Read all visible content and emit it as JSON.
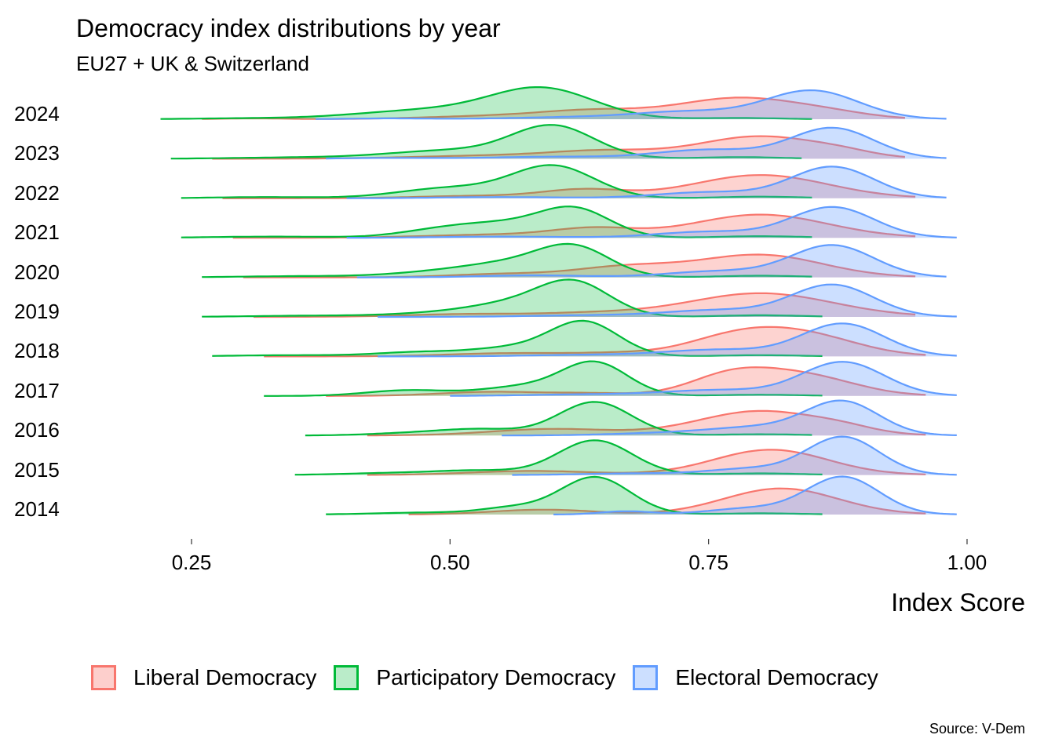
{
  "chart_data": {
    "type": "ridgeline",
    "title": "Democracy index distributions by year",
    "subtitle": "EU27 + UK & Switzerland",
    "xlabel": "Index Score",
    "ylabel": "",
    "xlim": [
      0.13,
      1.05
    ],
    "x_ticks": [
      "0.25",
      "0.50",
      "0.75",
      "1.00"
    ],
    "x_tick_values": [
      0.25,
      0.5,
      0.75,
      1.0
    ],
    "categories": [
      "2024",
      "2023",
      "2022",
      "2021",
      "2020",
      "2019",
      "2018",
      "2017",
      "2016",
      "2015",
      "2014"
    ],
    "legend_position": "bottom",
    "caption": "Source: V-Dem",
    "series": [
      {
        "name": "Liberal Democracy",
        "color": "#F8766D",
        "fill": "#F8766D",
        "years": {
          "2024": {
            "range": [
              0.26,
              0.94
            ],
            "components": [
              [
                0.31,
                0.03,
                0.02
              ],
              [
                0.55,
                0.07,
                0.08
              ],
              [
                0.64,
                0.05,
                0.18
              ],
              [
                0.78,
                0.06,
                0.52
              ],
              [
                0.87,
                0.04,
                0.1
              ]
            ]
          },
          "2023": {
            "range": [
              0.27,
              0.94
            ],
            "components": [
              [
                0.55,
                0.08,
                0.08
              ],
              [
                0.65,
                0.05,
                0.16
              ],
              [
                0.8,
                0.06,
                0.55
              ],
              [
                0.88,
                0.03,
                0.08
              ]
            ]
          },
          "2022": {
            "range": [
              0.28,
              0.95
            ],
            "components": [
              [
                0.53,
                0.06,
                0.06
              ],
              [
                0.63,
                0.04,
                0.2
              ],
              [
                0.8,
                0.065,
                0.57
              ]
            ]
          },
          "2021": {
            "range": [
              0.29,
              0.95
            ],
            "components": [
              [
                0.55,
                0.07,
                0.08
              ],
              [
                0.64,
                0.04,
                0.2
              ],
              [
                0.8,
                0.065,
                0.57
              ]
            ]
          },
          "2020": {
            "range": [
              0.3,
              0.95
            ],
            "components": [
              [
                0.55,
                0.05,
                0.08
              ],
              [
                0.67,
                0.05,
                0.25
              ],
              [
                0.8,
                0.06,
                0.55
              ]
            ]
          },
          "2019": {
            "range": [
              0.31,
              0.95
            ],
            "components": [
              [
                0.52,
                0.06,
                0.07
              ],
              [
                0.64,
                0.05,
                0.08
              ],
              [
                0.8,
                0.07,
                0.58
              ]
            ]
          },
          "2018": {
            "range": [
              0.32,
              0.96
            ],
            "components": [
              [
                0.56,
                0.06,
                0.08
              ],
              [
                0.66,
                0.04,
                0.06
              ],
              [
                0.78,
                0.05,
                0.5
              ],
              [
                0.85,
                0.05,
                0.42
              ]
            ]
          },
          "2017": {
            "range": [
              0.38,
              0.96
            ],
            "components": [
              [
                0.54,
                0.05,
                0.1
              ],
              [
                0.64,
                0.04,
                0.06
              ],
              [
                0.77,
                0.04,
                0.45
              ],
              [
                0.84,
                0.05,
                0.5
              ]
            ]
          },
          "2016": {
            "range": [
              0.42,
              0.96
            ],
            "components": [
              [
                0.6,
                0.06,
                0.16
              ],
              [
                0.8,
                0.06,
                0.6
              ],
              [
                0.88,
                0.03,
                0.1
              ]
            ]
          },
          "2015": {
            "range": [
              0.42,
              0.96
            ],
            "components": [
              [
                0.58,
                0.06,
                0.1
              ],
              [
                0.81,
                0.055,
                0.62
              ]
            ]
          },
          "2014": {
            "range": [
              0.46,
              0.96
            ],
            "components": [
              [
                0.59,
                0.05,
                0.12
              ],
              [
                0.82,
                0.055,
                0.64
              ]
            ]
          }
        }
      },
      {
        "name": "Participatory Democracy",
        "color": "#00BA38",
        "fill": "#00BA38",
        "years": {
          "2024": {
            "range": [
              0.22,
              0.85
            ],
            "components": [
              [
                0.3,
                0.05,
                0.02
              ],
              [
                0.48,
                0.07,
                0.22
              ],
              [
                0.59,
                0.05,
                0.72
              ],
              [
                0.78,
                0.04,
                0.03
              ]
            ]
          },
          "2023": {
            "range": [
              0.23,
              0.84
            ],
            "components": [
              [
                0.35,
                0.06,
                0.03
              ],
              [
                0.5,
                0.06,
                0.2
              ],
              [
                0.6,
                0.04,
                0.78
              ],
              [
                0.78,
                0.04,
                0.04
              ]
            ]
          },
          "2022": {
            "range": [
              0.24,
              0.85
            ],
            "components": [
              [
                0.32,
                0.05,
                0.03
              ],
              [
                0.5,
                0.05,
                0.25
              ],
              [
                0.6,
                0.04,
                0.78
              ],
              [
                0.8,
                0.04,
                0.04
              ]
            ]
          },
          "2021": {
            "range": [
              0.24,
              0.85
            ],
            "components": [
              [
                0.33,
                0.06,
                0.03
              ],
              [
                0.49,
                0.04,
                0.18
              ],
              [
                0.55,
                0.04,
                0.28
              ],
              [
                0.62,
                0.035,
                0.7
              ],
              [
                0.8,
                0.04,
                0.04
              ]
            ]
          },
          "2020": {
            "range": [
              0.26,
              0.85
            ],
            "components": [
              [
                0.36,
                0.06,
                0.03
              ],
              [
                0.5,
                0.05,
                0.15
              ],
              [
                0.56,
                0.04,
                0.25
              ],
              [
                0.62,
                0.035,
                0.72
              ],
              [
                0.8,
                0.04,
                0.04
              ]
            ]
          },
          "2019": {
            "range": [
              0.26,
              0.86
            ],
            "components": [
              [
                0.37,
                0.06,
                0.03
              ],
              [
                0.5,
                0.05,
                0.1
              ],
              [
                0.56,
                0.04,
                0.25
              ],
              [
                0.62,
                0.035,
                0.82
              ],
              [
                0.8,
                0.04,
                0.04
              ]
            ]
          },
          "2018": {
            "range": [
              0.27,
              0.86
            ],
            "components": [
              [
                0.35,
                0.06,
                0.03
              ],
              [
                0.47,
                0.04,
                0.1
              ],
              [
                0.56,
                0.04,
                0.2
              ],
              [
                0.63,
                0.033,
                0.83
              ],
              [
                0.8,
                0.04,
                0.03
              ]
            ]
          },
          "2017": {
            "range": [
              0.32,
              0.86
            ],
            "components": [
              [
                0.46,
                0.04,
                0.14
              ],
              [
                0.57,
                0.04,
                0.22
              ],
              [
                0.64,
                0.032,
                0.8
              ],
              [
                0.8,
                0.04,
                0.03
              ]
            ]
          },
          "2016": {
            "range": [
              0.36,
              0.85
            ],
            "components": [
              [
                0.46,
                0.04,
                0.05
              ],
              [
                0.53,
                0.04,
                0.15
              ],
              [
                0.64,
                0.035,
                0.82
              ],
              [
                0.8,
                0.04,
                0.03
              ]
            ]
          },
          "2015": {
            "range": [
              0.35,
              0.86
            ],
            "components": [
              [
                0.45,
                0.05,
                0.05
              ],
              [
                0.53,
                0.04,
                0.1
              ],
              [
                0.64,
                0.036,
                0.85
              ],
              [
                0.8,
                0.04,
                0.04
              ]
            ]
          },
          "2014": {
            "range": [
              0.38,
              0.86
            ],
            "components": [
              [
                0.48,
                0.05,
                0.05
              ],
              [
                0.56,
                0.03,
                0.15
              ],
              [
                0.64,
                0.034,
                0.92
              ],
              [
                0.8,
                0.04,
                0.03
              ]
            ]
          }
        }
      },
      {
        "name": "Electoral Democracy",
        "color": "#619CFF",
        "fill": "#619CFF",
        "years": {
          "2024": {
            "range": [
              0.37,
              0.98
            ],
            "components": [
              [
                0.44,
                0.04,
                0.02
              ],
              [
                0.62,
                0.06,
                0.05
              ],
              [
                0.73,
                0.05,
                0.18
              ],
              [
                0.85,
                0.045,
                0.7
              ]
            ]
          },
          "2023": {
            "range": [
              0.38,
              0.98
            ],
            "components": [
              [
                0.44,
                0.04,
                0.02
              ],
              [
                0.6,
                0.06,
                0.05
              ],
              [
                0.75,
                0.05,
                0.22
              ],
              [
                0.87,
                0.04,
                0.75
              ]
            ]
          },
          "2022": {
            "range": [
              0.4,
              0.98
            ],
            "components": [
              [
                0.55,
                0.06,
                0.03
              ],
              [
                0.75,
                0.05,
                0.15
              ],
              [
                0.87,
                0.04,
                0.77
              ]
            ]
          },
          "2021": {
            "range": [
              0.4,
              0.99
            ],
            "components": [
              [
                0.55,
                0.06,
                0.03
              ],
              [
                0.75,
                0.05,
                0.15
              ],
              [
                0.87,
                0.04,
                0.75
              ]
            ]
          },
          "2020": {
            "range": [
              0.41,
              0.98
            ],
            "components": [
              [
                0.58,
                0.05,
                0.05
              ],
              [
                0.76,
                0.05,
                0.15
              ],
              [
                0.87,
                0.04,
                0.78
              ]
            ]
          },
          "2019": {
            "range": [
              0.43,
              0.99
            ],
            "components": [
              [
                0.64,
                0.06,
                0.04
              ],
              [
                0.76,
                0.05,
                0.16
              ],
              [
                0.87,
                0.04,
                0.78
              ]
            ]
          },
          "2018": {
            "range": [
              0.43,
              0.99
            ],
            "components": [
              [
                0.64,
                0.06,
                0.04
              ],
              [
                0.76,
                0.05,
                0.16
              ],
              [
                0.88,
                0.04,
                0.8
              ]
            ]
          },
          "2017": {
            "range": [
              0.5,
              0.99
            ],
            "components": [
              [
                0.64,
                0.06,
                0.04
              ],
              [
                0.76,
                0.05,
                0.14
              ],
              [
                0.88,
                0.04,
                0.83
              ]
            ]
          },
          "2016": {
            "range": [
              0.55,
              0.99
            ],
            "components": [
              [
                0.7,
                0.05,
                0.05
              ],
              [
                0.8,
                0.05,
                0.2
              ],
              [
                0.88,
                0.035,
                0.8
              ]
            ]
          },
          "2015": {
            "range": [
              0.56,
              0.99
            ],
            "components": [
              [
                0.68,
                0.05,
                0.04
              ],
              [
                0.79,
                0.04,
                0.15
              ],
              [
                0.88,
                0.035,
                0.93
              ]
            ]
          },
          "2014": {
            "range": [
              0.6,
              0.99
            ],
            "components": [
              [
                0.67,
                0.025,
                0.08
              ],
              [
                0.79,
                0.04,
                0.15
              ],
              [
                0.88,
                0.035,
                0.92
              ]
            ]
          }
        }
      }
    ]
  }
}
